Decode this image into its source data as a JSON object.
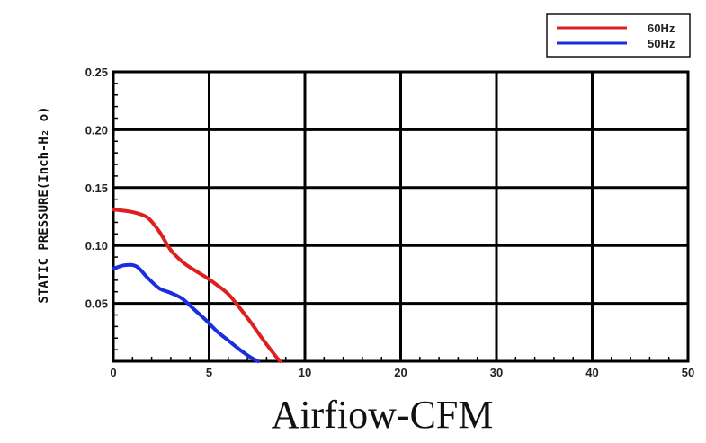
{
  "chart_data": {
    "type": "line",
    "xlabel": "Airfiow-CFM",
    "ylabel": "STATIC PRESSURE(Inch-H₂ o)",
    "xlim": [
      0,
      50
    ],
    "ylim": [
      0,
      0.25
    ],
    "x_ticks": [
      "0",
      "5",
      "10",
      "20",
      "30",
      "40",
      "50"
    ],
    "y_ticks": [
      "0.05",
      "0.10",
      "0.15",
      "0.20",
      "0.25"
    ],
    "grid": true,
    "legend_position": "top-right",
    "series": [
      {
        "name": "60Hz",
        "color": "#dd1f1f",
        "x": [
          0,
          1,
          2,
          3,
          4,
          5,
          6,
          7,
          8,
          9,
          10,
          11,
          12,
          13,
          14,
          14.5
        ],
        "y": [
          0.131,
          0.13,
          0.128,
          0.124,
          0.112,
          0.096,
          0.086,
          0.079,
          0.073,
          0.066,
          0.058,
          0.046,
          0.033,
          0.019,
          0.006,
          0
        ]
      },
      {
        "name": "50Hz",
        "color": "#1a2ee0",
        "x": [
          0,
          1,
          2,
          3,
          4,
          5,
          6,
          7,
          8,
          9,
          10,
          11,
          12,
          12.6
        ],
        "y": [
          0.08,
          0.083,
          0.082,
          0.072,
          0.063,
          0.059,
          0.054,
          0.045,
          0.036,
          0.026,
          0.018,
          0.01,
          0.003,
          0
        ]
      }
    ]
  }
}
